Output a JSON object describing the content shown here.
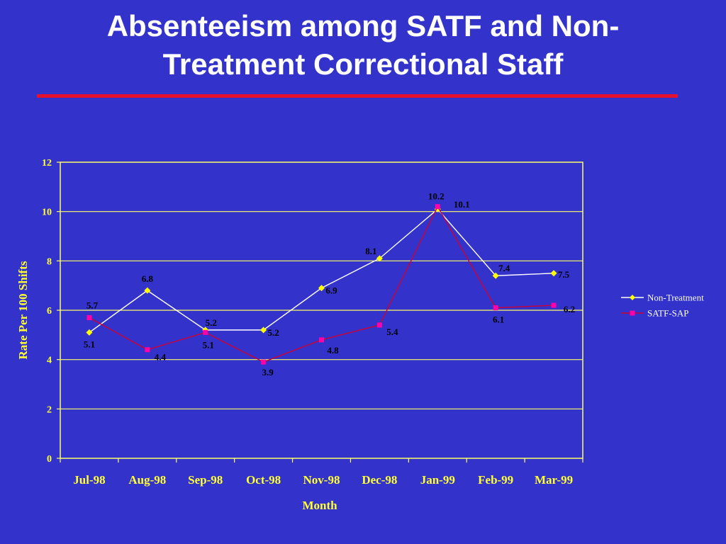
{
  "slide": {
    "title_line1": "Absenteeism among SATF and Non-",
    "title_line2": "Treatment Correctional Staff"
  },
  "colors": {
    "background": "#3333cc",
    "title_rule": "#e8112d",
    "axis_text": "#ffff33",
    "grid": "#ffff66",
    "non_treatment": "#ffffff",
    "non_treatment_marker": "#ffff00",
    "satf_sap": "#cc0033",
    "satf_sap_marker": "#ff00aa"
  },
  "chart_data": {
    "type": "line",
    "xlabel": "Month",
    "ylabel": "Rate Per 100 Shifts",
    "categories": [
      "Jul-98",
      "Aug-98",
      "Sep-98",
      "Oct-98",
      "Nov-98",
      "Dec-98",
      "Jan-99",
      "Feb-99",
      "Mar-99"
    ],
    "ylim": [
      0,
      12
    ],
    "yticks": [
      0,
      2,
      4,
      6,
      8,
      10,
      12
    ],
    "grid": true,
    "legend_position": "right",
    "series": [
      {
        "name": "Non-Treatment",
        "marker": "diamond",
        "values": [
          5.1,
          6.8,
          5.2,
          5.2,
          6.9,
          8.1,
          10.1,
          7.4,
          7.5
        ],
        "labels": [
          "5.1",
          "6.8",
          "5.2",
          "5.2",
          "6.9",
          "8.1",
          "10.1",
          "7.4",
          "7.5"
        ]
      },
      {
        "name": "SATF-SAP",
        "marker": "square",
        "values": [
          5.7,
          4.4,
          5.1,
          3.9,
          4.8,
          5.4,
          10.2,
          6.1,
          6.2
        ],
        "labels": [
          "5.7",
          "4.4",
          "5.1",
          "3.9",
          "4.8",
          "5.4",
          "10.2",
          "6.1",
          "6.2"
        ]
      }
    ]
  }
}
